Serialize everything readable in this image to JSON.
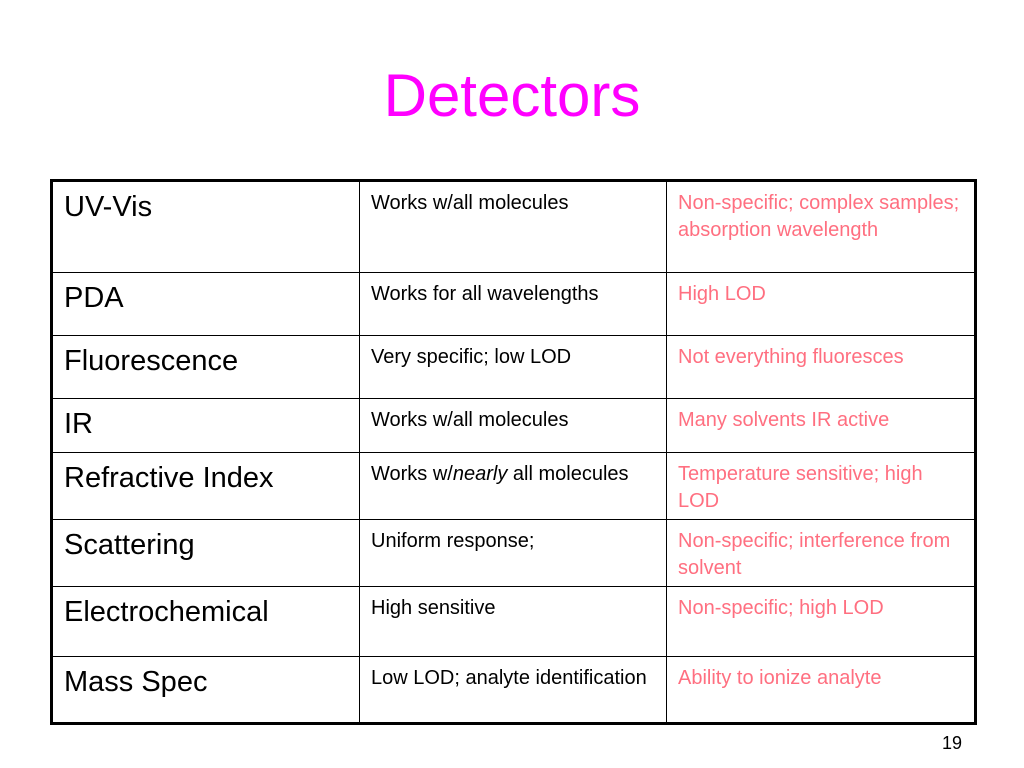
{
  "slide": {
    "title": "Detectors",
    "page_number": "19"
  },
  "table": {
    "rows": [
      {
        "name": "UV-Vis",
        "pro": "Works w/all molecules",
        "con": "Non-specific; complex samples; absorption wavelength"
      },
      {
        "name": "PDA",
        "pro": "Works for all wavelengths",
        "con": "High LOD"
      },
      {
        "name": "Fluorescence",
        "pro": "Very specific; low LOD",
        "con": "Not everything fluoresces"
      },
      {
        "name": "IR",
        "pro": "Works w/all molecules",
        "con": "Many solvents IR active"
      },
      {
        "name": "Refractive Index",
        "pro_parts": {
          "before": "Works w/",
          "emphasis": "nearly",
          "after": " all molecules"
        },
        "con": "Temperature sensitive; high LOD"
      },
      {
        "name": "Scattering",
        "pro": "Uniform response;",
        "con": "Non-specific; interference from solvent"
      },
      {
        "name": "Electrochemical",
        "pro": "High sensitive",
        "con": "Non-specific; high LOD"
      },
      {
        "name": "Mass Spec",
        "pro": "Low LOD; analyte identification",
        "con": "Ability to ionize analyte"
      }
    ]
  }
}
